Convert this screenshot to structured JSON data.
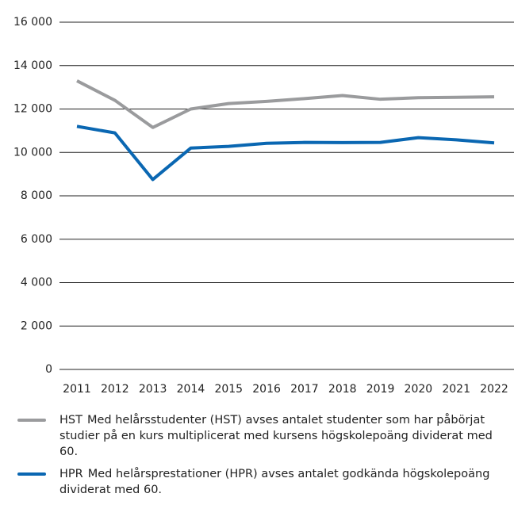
{
  "chart_data": {
    "type": "line",
    "categories": [
      "2011",
      "2012",
      "2013",
      "2014",
      "2015",
      "2016",
      "2017",
      "2018",
      "2019",
      "2020",
      "2021",
      "2022"
    ],
    "series": [
      {
        "name": "HST",
        "description": "Med helårsstudenter (HST) avses antalet studenter som har påbörjat studier på en kurs multiplicerat med kursens högskolepoäng dividerat med 60.",
        "color": "#9a9b9d",
        "values": [
          13300,
          12400,
          11150,
          12000,
          12250,
          12350,
          12480,
          12620,
          12450,
          12520,
          12540,
          12560
        ]
      },
      {
        "name": "HPR",
        "description": "Med helårsprestationer (HPR) avses antalet godkända högskolepoäng dividerat med 60.",
        "color": "#0a67b2",
        "values": [
          11200,
          10900,
          8750,
          10200,
          10280,
          10420,
          10460,
          10450,
          10460,
          10680,
          10580,
          10440
        ]
      }
    ],
    "ylim": [
      0,
      16000
    ],
    "yticks": [
      0,
      {
        "value": 2000,
        "label": "2 000"
      },
      {
        "value": 4000,
        "label": "4 000"
      },
      {
        "value": 6000,
        "label": "6 000"
      },
      {
        "value": 8000,
        "label": "8 000"
      },
      {
        "value": 10000,
        "label": "10 000"
      },
      {
        "value": 12000,
        "label": "12 000"
      },
      {
        "value": 14000,
        "label": "14 000"
      },
      {
        "value": 16000,
        "label": "16 000"
      }
    ],
    "grid": true
  }
}
